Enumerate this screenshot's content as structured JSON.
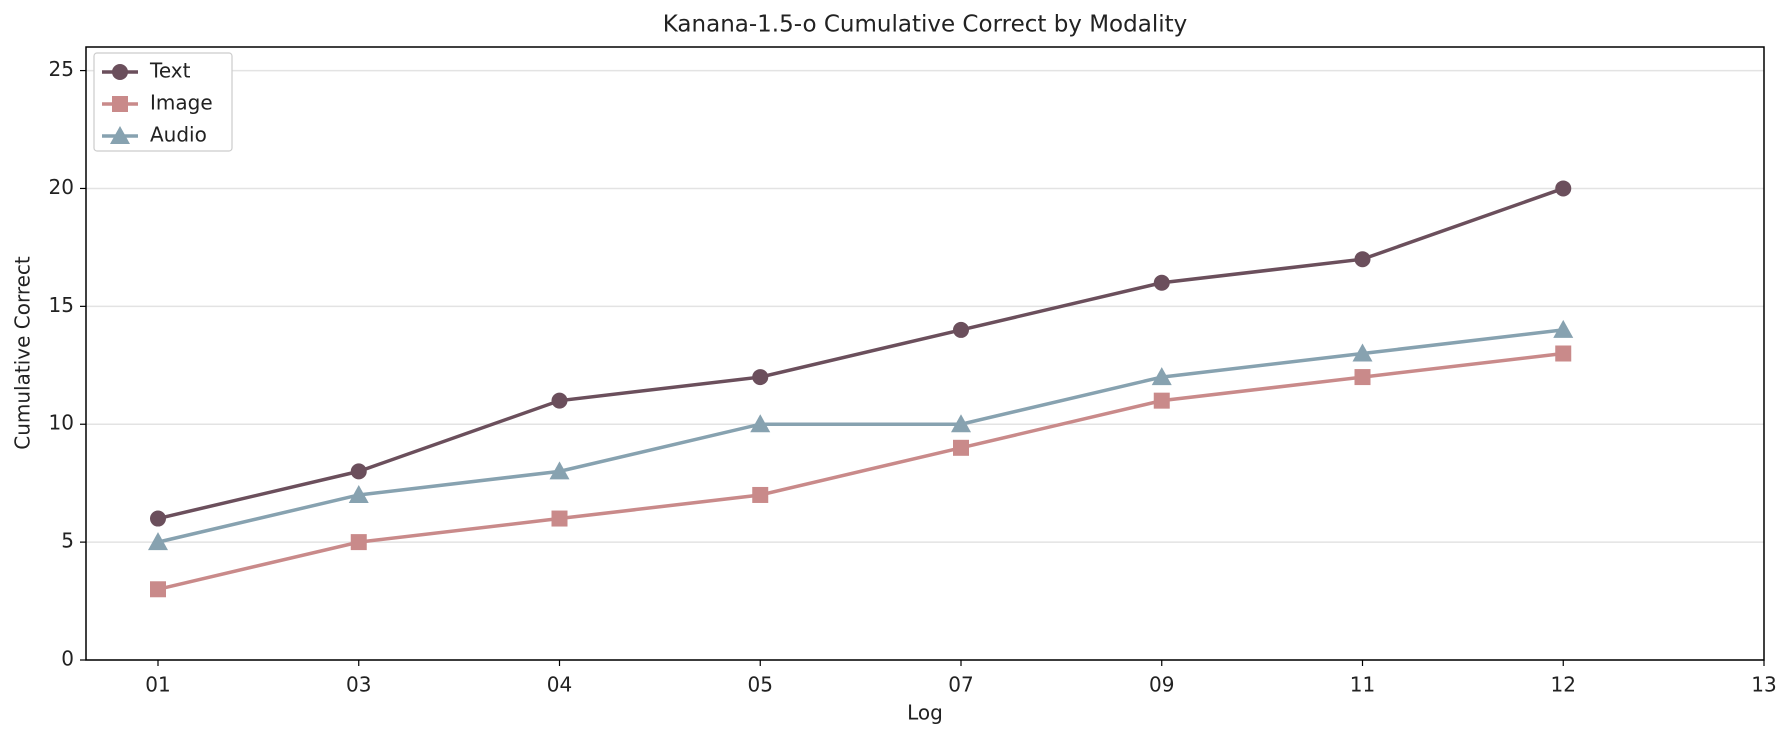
{
  "chart_data": {
    "type": "line",
    "title": "Kanana-1.5-o  Cumulative Correct by Modality",
    "x_label": "Log",
    "y_label": "Cumulative Correct",
    "categories": [
      "01",
      "03",
      "04",
      "05",
      "07",
      "09",
      "11",
      "12",
      "13"
    ],
    "series": [
      {
        "name": "Text",
        "color": "#6b4f5c",
        "marker": "circle",
        "values": [
          6,
          8,
          11,
          12,
          14,
          16,
          17,
          20,
          null
        ]
      },
      {
        "name": "Image",
        "color": "#c98a8a",
        "marker": "square",
        "values": [
          3,
          5,
          6,
          7,
          9,
          11,
          12,
          13,
          null
        ]
      },
      {
        "name": "Audio",
        "color": "#87a2b0",
        "marker": "triangle",
        "values": [
          5,
          7,
          8,
          10,
          10,
          12,
          13,
          14,
          null
        ]
      }
    ],
    "ylim": [
      0,
      26
    ],
    "yticks": [
      0,
      5,
      10,
      15,
      20,
      25
    ],
    "grid": true,
    "legend": "upper-left"
  }
}
